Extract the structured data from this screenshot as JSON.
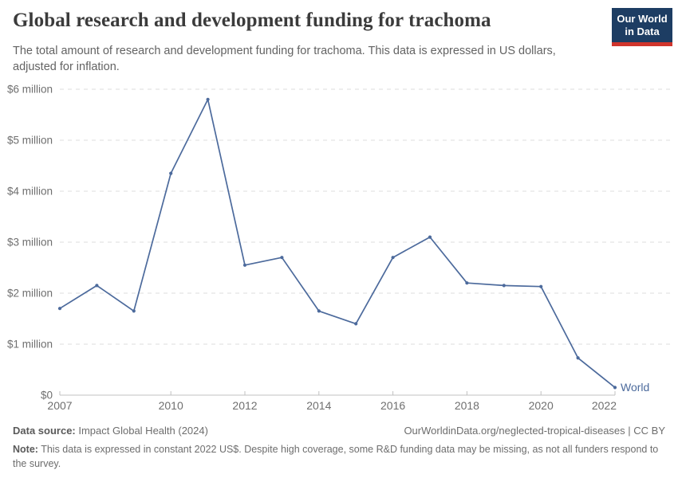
{
  "header": {
    "title": "Global research and development funding for trachoma",
    "subtitle": "The total amount of research and development funding for trachoma. This data is expressed in US dollars, adjusted for inflation.",
    "logo": {
      "line1": "Our World",
      "line2": "in Data",
      "bg_color": "#1d3d63",
      "accent_color": "#d0342c"
    }
  },
  "chart_data": {
    "type": "line",
    "title": "Global research and development funding for trachoma",
    "unit": "US$, constant 2022 prices",
    "xlim": [
      2007,
      2022
    ],
    "ylim": [
      0,
      6000000
    ],
    "grid": "horizontal-dashed",
    "legend_position": "end-of-line-label",
    "x_ticks": [
      2007,
      2010,
      2012,
      2014,
      2016,
      2018,
      2020,
      2022
    ],
    "y_ticks": [
      {
        "value": 0,
        "label": "$0"
      },
      {
        "value": 1000000,
        "label": "$1 million"
      },
      {
        "value": 2000000,
        "label": "$2 million"
      },
      {
        "value": 3000000,
        "label": "$3 million"
      },
      {
        "value": 4000000,
        "label": "$4 million"
      },
      {
        "value": 5000000,
        "label": "$5 million"
      },
      {
        "value": 6000000,
        "label": "$6 million"
      }
    ],
    "series": [
      {
        "name": "World",
        "color": "#4c6a9c",
        "x": [
          2007,
          2008,
          2009,
          2010,
          2011,
          2012,
          2013,
          2014,
          2015,
          2016,
          2017,
          2018,
          2019,
          2020,
          2021,
          2022
        ],
        "values": [
          1700000,
          2150000,
          1650000,
          4350000,
          5800000,
          2550000,
          2700000,
          1650000,
          1400000,
          2700000,
          3100000,
          2200000,
          2150000,
          2130000,
          730000,
          150000
        ]
      }
    ]
  },
  "footer": {
    "source_label": "Data source:",
    "source_value": " Impact Global Health (2024)",
    "attribution": "OurWorldinData.org/neglected-tropical-diseases | CC BY",
    "note_label": "Note:",
    "note_value": " This data is expressed in constant 2022 US$. Despite high coverage, some R&D funding data may be missing, as not all funders respond to the survey."
  }
}
